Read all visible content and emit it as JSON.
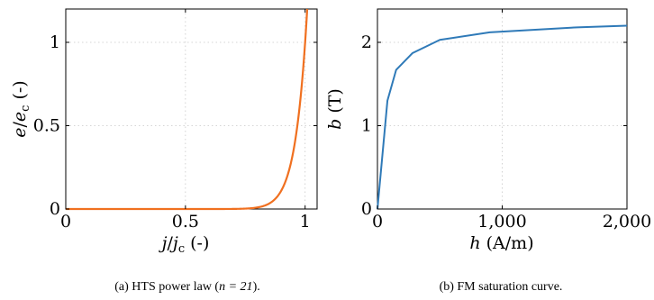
{
  "chart_data": [
    {
      "type": "line",
      "caption_label": "(a) HTS power law (",
      "caption_eq": "n = 21",
      "caption_tail": ").",
      "xlabel": "j/jc (-)",
      "ylabel": "e/ec (-)",
      "xlim": [
        0,
        1.05
      ],
      "ylim": [
        0,
        1.2
      ],
      "x_ticks": [
        "0",
        "0.5",
        "1"
      ],
      "y_ticks": [
        "0",
        "0.5",
        "1"
      ],
      "x_tick_values": [
        0,
        0.5,
        1
      ],
      "y_tick_values": [
        0,
        0.5,
        1
      ],
      "grid": true,
      "n": 21,
      "series": [
        {
          "color": "#f07020",
          "function": "power_law",
          "x_range": [
            0,
            1.05
          ]
        }
      ]
    },
    {
      "type": "line",
      "caption": "(b) FM saturation curve.",
      "xlabel": "h (A/m)",
      "ylabel": "b (T)",
      "xlim": [
        0,
        2000
      ],
      "ylim": [
        0,
        2.4
      ],
      "x_ticks": [
        "0",
        "1,000",
        "2,000"
      ],
      "y_ticks": [
        "0",
        "1",
        "2"
      ],
      "x_tick_values": [
        0,
        1000,
        2000
      ],
      "y_tick_values": [
        0,
        1,
        2
      ],
      "grid": true,
      "series": [
        {
          "color": "#2f7ab8",
          "x": [
            0,
            80,
            150,
            280,
            500,
            900,
            1600,
            2000
          ],
          "y": [
            0,
            1.3,
            1.67,
            1.87,
            2.03,
            2.12,
            2.18,
            2.2
          ]
        }
      ]
    }
  ]
}
